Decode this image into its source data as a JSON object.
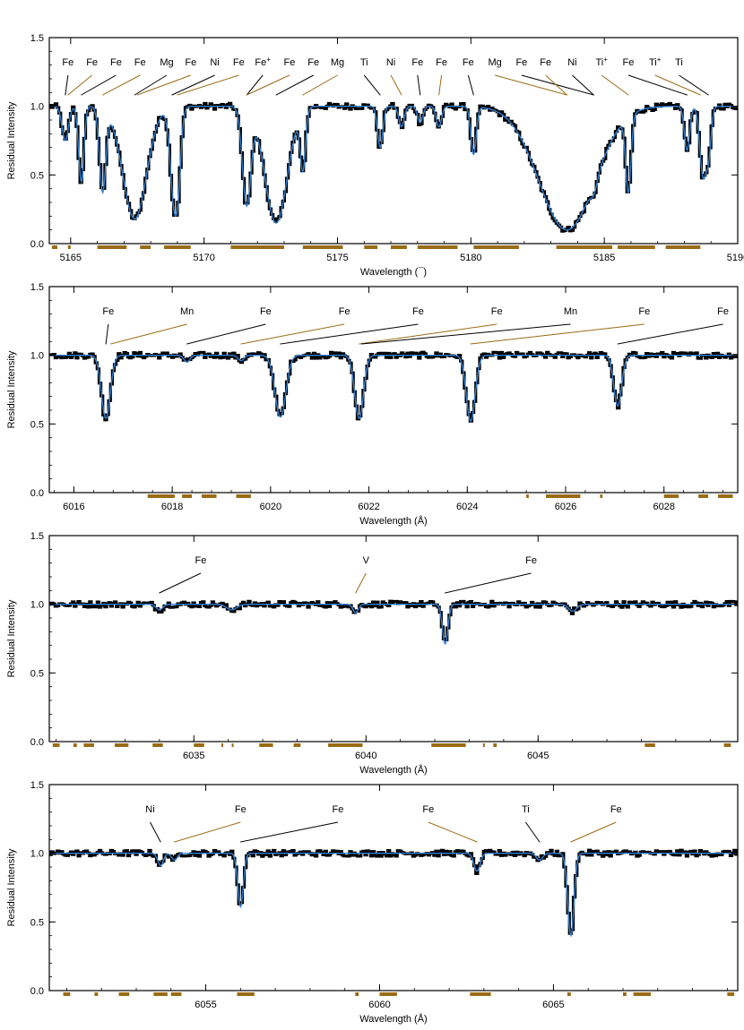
{
  "figure": {
    "colors": {
      "observed": "#000000",
      "model": "#2f7fd6",
      "line_label_black": "#000000",
      "line_label_gold": "#9a6b14",
      "mask": "#9a6b14"
    }
  },
  "chart_data": [
    {
      "type": "line",
      "xlabel": "Wavelength (¯)",
      "ylabel": "Residual Intensity",
      "xlim": [
        5164.2,
        5190.0
      ],
      "ylim": [
        0.0,
        1.5
      ],
      "xticks": [
        5165,
        5170,
        5175,
        5180,
        5185,
        5190
      ],
      "yticks": [
        0.0,
        0.5,
        1.0,
        1.5
      ],
      "ytick_labels": [
        "0.0",
        "0.5",
        "1.0",
        "1.5"
      ],
      "lines": [
        {
          "x": 5164.8,
          "d": 0.25,
          "w": 0.12
        },
        {
          "x": 5165.4,
          "d": 0.55,
          "w": 0.1
        },
        {
          "x": 5166.2,
          "d": 0.62,
          "w": 0.12
        },
        {
          "x": 5167.4,
          "d": 0.82,
          "w": 0.45
        },
        {
          "x": 5168.9,
          "d": 0.72,
          "w": 0.16
        },
        {
          "x": 5169.0,
          "d": 0.4,
          "w": 0.1
        },
        {
          "x": 5171.6,
          "d": 0.72,
          "w": 0.16
        },
        {
          "x": 5172.7,
          "d": 0.85,
          "w": 0.42
        },
        {
          "x": 5173.7,
          "d": 0.45,
          "w": 0.1
        },
        {
          "x": 5176.6,
          "d": 0.3,
          "w": 0.1
        },
        {
          "x": 5177.4,
          "d": 0.15,
          "w": 0.1
        },
        {
          "x": 5178.1,
          "d": 0.12,
          "w": 0.1
        },
        {
          "x": 5178.8,
          "d": 0.15,
          "w": 0.1
        },
        {
          "x": 5180.1,
          "d": 0.35,
          "w": 0.1
        },
        {
          "x": 5183.6,
          "d": 0.9,
          "w": 1.05
        },
        {
          "x": 5184.6,
          "d": 0.18,
          "w": 0.12
        },
        {
          "x": 5185.9,
          "d": 0.6,
          "w": 0.1
        },
        {
          "x": 5188.1,
          "d": 0.32,
          "w": 0.1
        },
        {
          "x": 5188.7,
          "d": 0.5,
          "w": 0.12
        },
        {
          "x": 5188.9,
          "d": 0.35,
          "w": 0.1
        }
      ],
      "labels": [
        {
          "text": "Fe",
          "color": "black",
          "tx": 5164.9,
          "lx": 5164.8
        },
        {
          "text": "Fe",
          "color": "gold",
          "tx": 5165.8,
          "lx": 5164.9
        },
        {
          "text": "Fe",
          "color": "black",
          "tx": 5166.7,
          "lx": 5165.4
        },
        {
          "text": "Fe",
          "color": "gold",
          "tx": 5167.6,
          "lx": 5166.2
        },
        {
          "text": "Mg",
          "color": "black",
          "tx": 5168.6,
          "lx": 5167.4
        },
        {
          "text": "Fe",
          "color": "gold",
          "tx": 5169.5,
          "lx": 5167.5
        },
        {
          "text": "Ni",
          "color": "black",
          "tx": 5170.4,
          "lx": 5168.8
        },
        {
          "text": "Fe",
          "color": "gold",
          "tx": 5171.3,
          "lx": 5169.0
        },
        {
          "text": "Fe",
          "sup": "+",
          "color": "black",
          "tx": 5172.2,
          "lx": 5171.6
        },
        {
          "text": "Fe",
          "color": "gold",
          "tx": 5173.2,
          "lx": 5171.6
        },
        {
          "text": "Fe",
          "color": "black",
          "tx": 5174.1,
          "lx": 5172.7
        },
        {
          "text": "Mg",
          "color": "gold",
          "tx": 5175.0,
          "lx": 5173.7
        },
        {
          "text": "Ti",
          "color": "black",
          "tx": 5176.0,
          "lx": 5176.6
        },
        {
          "text": "Ni",
          "color": "gold",
          "tx": 5177.0,
          "lx": 5177.4
        },
        {
          "text": "Fe",
          "color": "black",
          "tx": 5178.0,
          "lx": 5178.1
        },
        {
          "text": "Fe",
          "color": "gold",
          "tx": 5178.9,
          "lx": 5178.8
        },
        {
          "text": "Fe",
          "color": "black",
          "tx": 5179.9,
          "lx": 5180.1
        },
        {
          "text": "Mg",
          "color": "gold",
          "tx": 5180.9,
          "lx": 5183.6
        },
        {
          "text": "Fe",
          "color": "black",
          "tx": 5181.9,
          "lx": 5184.6
        },
        {
          "text": "Fe",
          "color": "gold",
          "tx": 5182.8,
          "lx": 5183.6
        },
        {
          "text": "Ni",
          "color": "black",
          "tx": 5183.8,
          "lx": 5184.6
        },
        {
          "text": "Ti",
          "sup": "+",
          "color": "gold",
          "tx": 5184.9,
          "lx": 5185.9
        },
        {
          "text": "Fe",
          "color": "black",
          "tx": 5185.9,
          "lx": 5188.1
        },
        {
          "text": "Ti",
          "sup": "+",
          "color": "gold",
          "tx": 5186.9,
          "lx": 5188.6
        },
        {
          "text": "Ti",
          "color": "black",
          "tx": 5187.8,
          "lx": 5188.9
        }
      ],
      "masks": [
        [
          5164.3,
          5164.5
        ],
        [
          5164.9,
          5165.0
        ],
        [
          5166.0,
          5167.1
        ],
        [
          5167.6,
          5168.0
        ],
        [
          5168.5,
          5169.5
        ],
        [
          5171.0,
          5173.0
        ],
        [
          5173.7,
          5175.2
        ],
        [
          5176.0,
          5176.5
        ],
        [
          5177.0,
          5177.6
        ],
        [
          5178.0,
          5179.5
        ],
        [
          5180.1,
          5181.8
        ],
        [
          5183.2,
          5185.3
        ],
        [
          5185.5,
          5186.9
        ],
        [
          5187.3,
          5188.6
        ]
      ]
    },
    {
      "type": "line",
      "xlabel": "Wavelength (Å)",
      "ylabel": "Residual Intensity",
      "xlim": [
        6015.5,
        6029.5
      ],
      "ylim": [
        0.0,
        1.5
      ],
      "xticks": [
        6016,
        6018,
        6020,
        6022,
        6024,
        6026,
        6028
      ],
      "yticks": [
        0.0,
        0.5,
        1.0,
        1.5
      ],
      "ytick_labels": [
        "0.0",
        "0.5",
        "1.0",
        "1.5"
      ],
      "lines": [
        {
          "x": 6016.65,
          "d": 0.46,
          "w": 0.09
        },
        {
          "x": 6018.3,
          "d": 0.05,
          "w": 0.06
        },
        {
          "x": 6019.4,
          "d": 0.04,
          "w": 0.06
        },
        {
          "x": 6020.2,
          "d": 0.45,
          "w": 0.11
        },
        {
          "x": 6021.8,
          "d": 0.46,
          "w": 0.09
        },
        {
          "x": 6024.07,
          "d": 0.48,
          "w": 0.09
        },
        {
          "x": 6027.06,
          "d": 0.37,
          "w": 0.08
        }
      ],
      "labels": [
        {
          "text": "Fe",
          "color": "black",
          "tx": 6016.7,
          "lx": 6016.65
        },
        {
          "text": "Mn",
          "color": "gold",
          "tx": 6018.3,
          "lx": 6016.75
        },
        {
          "text": "Fe",
          "color": "black",
          "tx": 6019.9,
          "lx": 6018.3
        },
        {
          "text": "Fe",
          "color": "gold",
          "tx": 6021.5,
          "lx": 6019.4
        },
        {
          "text": "Fe",
          "color": "black",
          "tx": 6023.0,
          "lx": 6020.2
        },
        {
          "text": "Fe",
          "color": "gold",
          "tx": 6024.6,
          "lx": 6021.8
        },
        {
          "text": "Mn",
          "color": "black",
          "tx": 6026.1,
          "lx": 6021.85
        },
        {
          "text": "Fe",
          "color": "gold",
          "tx": 6027.6,
          "lx": 6024.07
        },
        {
          "text": "Fe",
          "color": "black",
          "tx": 6029.2,
          "lx": 6027.06
        }
      ],
      "masks": [
        [
          6017.5,
          6018.05
        ],
        [
          6018.2,
          6018.4
        ],
        [
          6018.6,
          6018.9
        ],
        [
          6019.3,
          6019.6
        ],
        [
          6025.2,
          6025.25
        ],
        [
          6025.6,
          6026.3
        ],
        [
          6026.7,
          6026.75
        ],
        [
          6028.0,
          6028.3
        ],
        [
          6028.7,
          6028.9
        ],
        [
          6029.1,
          6029.4
        ]
      ]
    },
    {
      "type": "line",
      "xlabel": "Wavelength (Å)",
      "ylabel": "Residual Intensity",
      "xlim": [
        6030.8,
        6050.8
      ],
      "ylim": [
        0.0,
        1.5
      ],
      "xticks": [
        6035,
        6040,
        6045
      ],
      "yticks": [
        0.0,
        0.5,
        1.0,
        1.5
      ],
      "ytick_labels": [
        "0.0",
        "0.5",
        "1.0",
        "1.5"
      ],
      "lines": [
        {
          "x": 6034.0,
          "d": 0.04,
          "w": 0.1
        },
        {
          "x": 6036.1,
          "d": 0.04,
          "w": 0.15
        },
        {
          "x": 6039.7,
          "d": 0.06,
          "w": 0.08
        },
        {
          "x": 6042.3,
          "d": 0.29,
          "w": 0.08
        },
        {
          "x": 6046.0,
          "d": 0.05,
          "w": 0.12
        }
      ],
      "labels": [
        {
          "text": "Fe",
          "color": "black",
          "tx": 6035.2,
          "lx": 6034.0
        },
        {
          "text": "V",
          "color": "gold",
          "tx": 6040.0,
          "lx": 6039.7
        },
        {
          "text": "Fe",
          "color": "black",
          "tx": 6044.8,
          "lx": 6042.3
        }
      ],
      "masks": [
        [
          6030.9,
          6031.1
        ],
        [
          6031.5,
          6031.6
        ],
        [
          6031.8,
          6032.1
        ],
        [
          6032.7,
          6033.1
        ],
        [
          6033.8,
          6034.1
        ],
        [
          6035.0,
          6035.3
        ],
        [
          6035.8,
          6035.85
        ],
        [
          6036.1,
          6036.15
        ],
        [
          6036.9,
          6037.3
        ],
        [
          6037.9,
          6038.1
        ],
        [
          6038.9,
          6039.9
        ],
        [
          6041.9,
          6042.9
        ],
        [
          6043.4,
          6043.45
        ],
        [
          6043.7,
          6043.8
        ],
        [
          6048.1,
          6048.4
        ],
        [
          6050.4,
          6050.6
        ]
      ]
    },
    {
      "type": "line",
      "xlabel": "Wavelength (Å)",
      "ylabel": "Residual Intensity",
      "xlim": [
        6050.5,
        6070.3
      ],
      "ylim": [
        0.0,
        1.5
      ],
      "xticks": [
        6055,
        6060,
        6065
      ],
      "yticks": [
        0.0,
        0.5,
        1.0,
        1.5
      ],
      "ytick_labels": [
        "0.0",
        "0.5",
        "1.0",
        "1.5"
      ],
      "lines": [
        {
          "x": 6053.7,
          "d": 0.09,
          "w": 0.08
        },
        {
          "x": 6054.1,
          "d": 0.05,
          "w": 0.08
        },
        {
          "x": 6056.0,
          "d": 0.39,
          "w": 0.08
        },
        {
          "x": 6062.8,
          "d": 0.13,
          "w": 0.09
        },
        {
          "x": 6064.6,
          "d": 0.05,
          "w": 0.09
        },
        {
          "x": 6065.5,
          "d": 0.6,
          "w": 0.09
        }
      ],
      "labels": [
        {
          "text": "Ni",
          "color": "black",
          "tx": 6053.4,
          "lx": 6053.7
        },
        {
          "text": "Fe",
          "color": "gold",
          "tx": 6056.0,
          "lx": 6054.1
        },
        {
          "text": "Fe",
          "color": "black",
          "tx": 6058.8,
          "lx": 6056.0
        },
        {
          "text": "Fe",
          "color": "gold",
          "tx": 6061.4,
          "lx": 6062.8
        },
        {
          "text": "Ti",
          "color": "black",
          "tx": 6064.2,
          "lx": 6064.6
        },
        {
          "text": "Fe",
          "color": "gold",
          "tx": 6066.8,
          "lx": 6065.5
        }
      ],
      "masks": [
        [
          6050.9,
          6051.1
        ],
        [
          6051.8,
          6051.9
        ],
        [
          6052.5,
          6052.8
        ],
        [
          6053.5,
          6053.9
        ],
        [
          6054.0,
          6054.3
        ],
        [
          6055.9,
          6056.4
        ],
        [
          6059.3,
          6059.4
        ],
        [
          6060.0,
          6060.5
        ],
        [
          6062.6,
          6063.2
        ],
        [
          6065.4,
          6065.5
        ],
        [
          6067.0,
          6067.1
        ],
        [
          6067.3,
          6067.8
        ],
        [
          6070.0,
          6070.2
        ]
      ]
    }
  ]
}
